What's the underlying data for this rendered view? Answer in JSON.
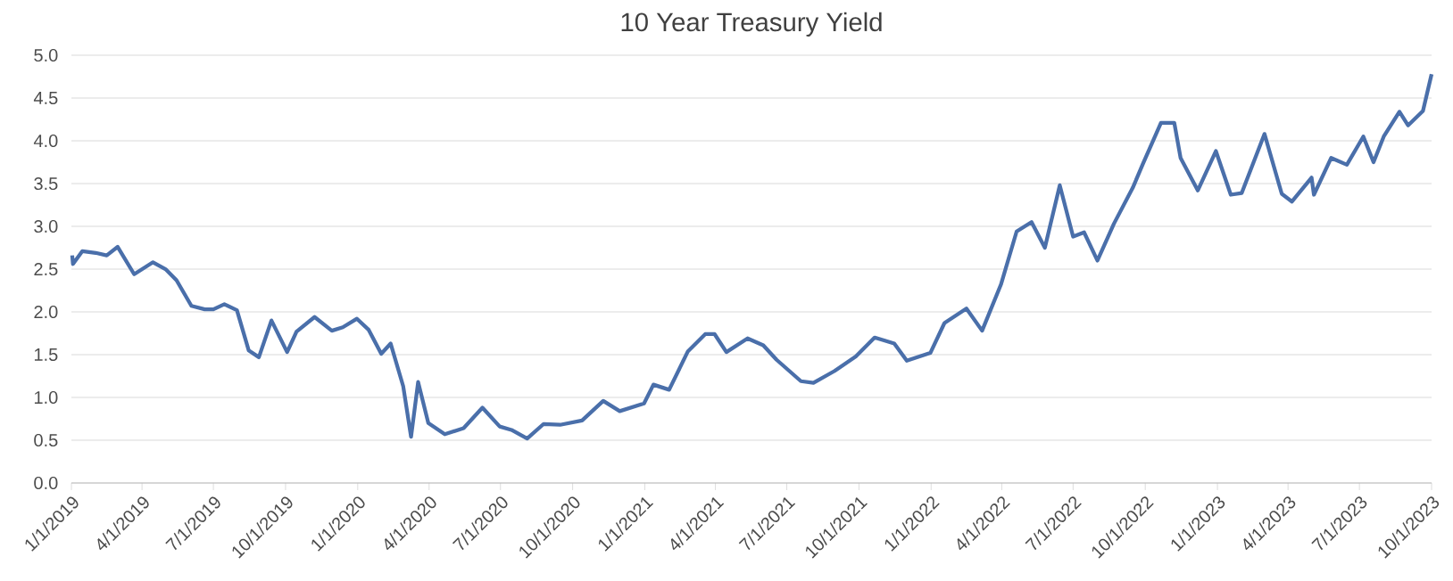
{
  "chart_data": {
    "type": "line",
    "title": "10 Year Treasury Yield",
    "x": [
      "2019-01-02",
      "2019-01-03",
      "2019-01-15",
      "2019-02-01",
      "2019-02-15",
      "2019-03-01",
      "2019-03-22",
      "2019-04-15",
      "2019-05-01",
      "2019-05-15",
      "2019-06-03",
      "2019-06-20",
      "2019-07-01",
      "2019-07-15",
      "2019-07-31",
      "2019-08-15",
      "2019-08-28",
      "2019-09-13",
      "2019-10-03",
      "2019-10-15",
      "2019-11-07",
      "2019-11-29",
      "2019-12-13",
      "2019-12-31",
      "2020-01-15",
      "2020-01-31",
      "2020-02-12",
      "2020-02-28",
      "2020-03-09",
      "2020-03-18",
      "2020-03-31",
      "2020-04-21",
      "2020-05-15",
      "2020-06-08",
      "2020-06-30",
      "2020-07-15",
      "2020-08-04",
      "2020-08-25",
      "2020-09-15",
      "2020-10-13",
      "2020-11-09",
      "2020-11-30",
      "2020-12-31",
      "2021-01-12",
      "2021-02-01",
      "2021-02-25",
      "2021-03-19",
      "2021-03-31",
      "2021-04-15",
      "2021-05-12",
      "2021-06-01",
      "2021-06-18",
      "2021-07-19",
      "2021-08-04",
      "2021-08-31",
      "2021-09-27",
      "2021-10-21",
      "2021-11-15",
      "2021-12-01",
      "2021-12-31",
      "2022-01-18",
      "2022-02-15",
      "2022-03-07",
      "2022-03-31",
      "2022-04-20",
      "2022-05-09",
      "2022-05-26",
      "2022-06-14",
      "2022-07-01",
      "2022-07-15",
      "2022-08-01",
      "2022-08-22",
      "2022-09-15",
      "2022-09-28",
      "2022-10-21",
      "2022-11-07",
      "2022-11-15",
      "2022-12-07",
      "2022-12-30",
      "2023-01-18",
      "2023-02-01",
      "2023-03-02",
      "2023-03-24",
      "2023-04-06",
      "2023-05-01",
      "2023-05-04",
      "2023-05-26",
      "2023-06-15",
      "2023-07-06",
      "2023-07-19",
      "2023-08-01",
      "2023-08-21",
      "2023-09-01",
      "2023-09-20",
      "2023-10-01"
    ],
    "series": [
      {
        "color": "#4a6faa",
        "values": [
          2.66,
          2.56,
          2.71,
          2.69,
          2.66,
          2.76,
          2.44,
          2.58,
          2.5,
          2.37,
          2.07,
          2.03,
          2.03,
          2.09,
          2.02,
          1.55,
          1.47,
          1.9,
          1.53,
          1.77,
          1.94,
          1.78,
          1.82,
          1.92,
          1.79,
          1.51,
          1.63,
          1.13,
          0.54,
          1.18,
          0.7,
          0.57,
          0.64,
          0.88,
          0.66,
          0.62,
          0.52,
          0.69,
          0.68,
          0.73,
          0.96,
          0.84,
          0.93,
          1.15,
          1.09,
          1.54,
          1.74,
          1.74,
          1.53,
          1.69,
          1.61,
          1.44,
          1.19,
          1.17,
          1.31,
          1.48,
          1.7,
          1.63,
          1.43,
          1.52,
          1.87,
          2.04,
          1.78,
          2.32,
          2.94,
          3.05,
          2.75,
          3.48,
          2.88,
          2.93,
          2.6,
          3.03,
          3.45,
          3.73,
          4.21,
          4.21,
          3.8,
          3.42,
          3.88,
          3.37,
          3.39,
          4.08,
          3.38,
          3.29,
          3.57,
          3.37,
          3.8,
          3.72,
          4.05,
          3.75,
          4.05,
          4.34,
          4.18,
          4.35,
          4.78
        ]
      }
    ],
    "xlim": [
      "2019-01-01",
      "2023-10-01"
    ],
    "xticks": [
      {
        "value": "2019-01-01",
        "label": "1/1/2019"
      },
      {
        "value": "2019-04-01",
        "label": "4/1/2019"
      },
      {
        "value": "2019-07-01",
        "label": "7/1/2019"
      },
      {
        "value": "2019-10-01",
        "label": "10/1/2019"
      },
      {
        "value": "2020-01-01",
        "label": "1/1/2020"
      },
      {
        "value": "2020-04-01",
        "label": "4/1/2020"
      },
      {
        "value": "2020-07-01",
        "label": "7/1/2020"
      },
      {
        "value": "2020-10-01",
        "label": "10/1/2020"
      },
      {
        "value": "2021-01-01",
        "label": "1/1/2021"
      },
      {
        "value": "2021-04-01",
        "label": "4/1/2021"
      },
      {
        "value": "2021-07-01",
        "label": "7/1/2021"
      },
      {
        "value": "2021-10-01",
        "label": "10/1/2021"
      },
      {
        "value": "2022-01-01",
        "label": "1/1/2022"
      },
      {
        "value": "2022-04-01",
        "label": "4/1/2022"
      },
      {
        "value": "2022-07-01",
        "label": "7/1/2022"
      },
      {
        "value": "2022-10-01",
        "label": "10/1/2022"
      },
      {
        "value": "2023-01-01",
        "label": "1/1/2023"
      },
      {
        "value": "2023-04-01",
        "label": "4/1/2023"
      },
      {
        "value": "2023-07-01",
        "label": "7/1/2023"
      },
      {
        "value": "2023-10-01",
        "label": "10/1/2023"
      }
    ],
    "ylim": [
      0,
      5.0
    ],
    "yticks": [
      {
        "value": 0,
        "label": "0.0"
      },
      {
        "value": 0.5,
        "label": "0.5"
      },
      {
        "value": 1,
        "label": "1.0"
      },
      {
        "value": 1.5,
        "label": "1.5"
      },
      {
        "value": 2,
        "label": "2.0"
      },
      {
        "value": 2.5,
        "label": "2.5"
      },
      {
        "value": 3,
        "label": "3.0"
      },
      {
        "value": 3.5,
        "label": "3.5"
      },
      {
        "value": 4,
        "label": "4.0"
      },
      {
        "value": 4.5,
        "label": "4.5"
      },
      {
        "value": 5,
        "label": "5.0"
      }
    ],
    "grid": "y",
    "marker": "none",
    "line_style": "solid"
  }
}
